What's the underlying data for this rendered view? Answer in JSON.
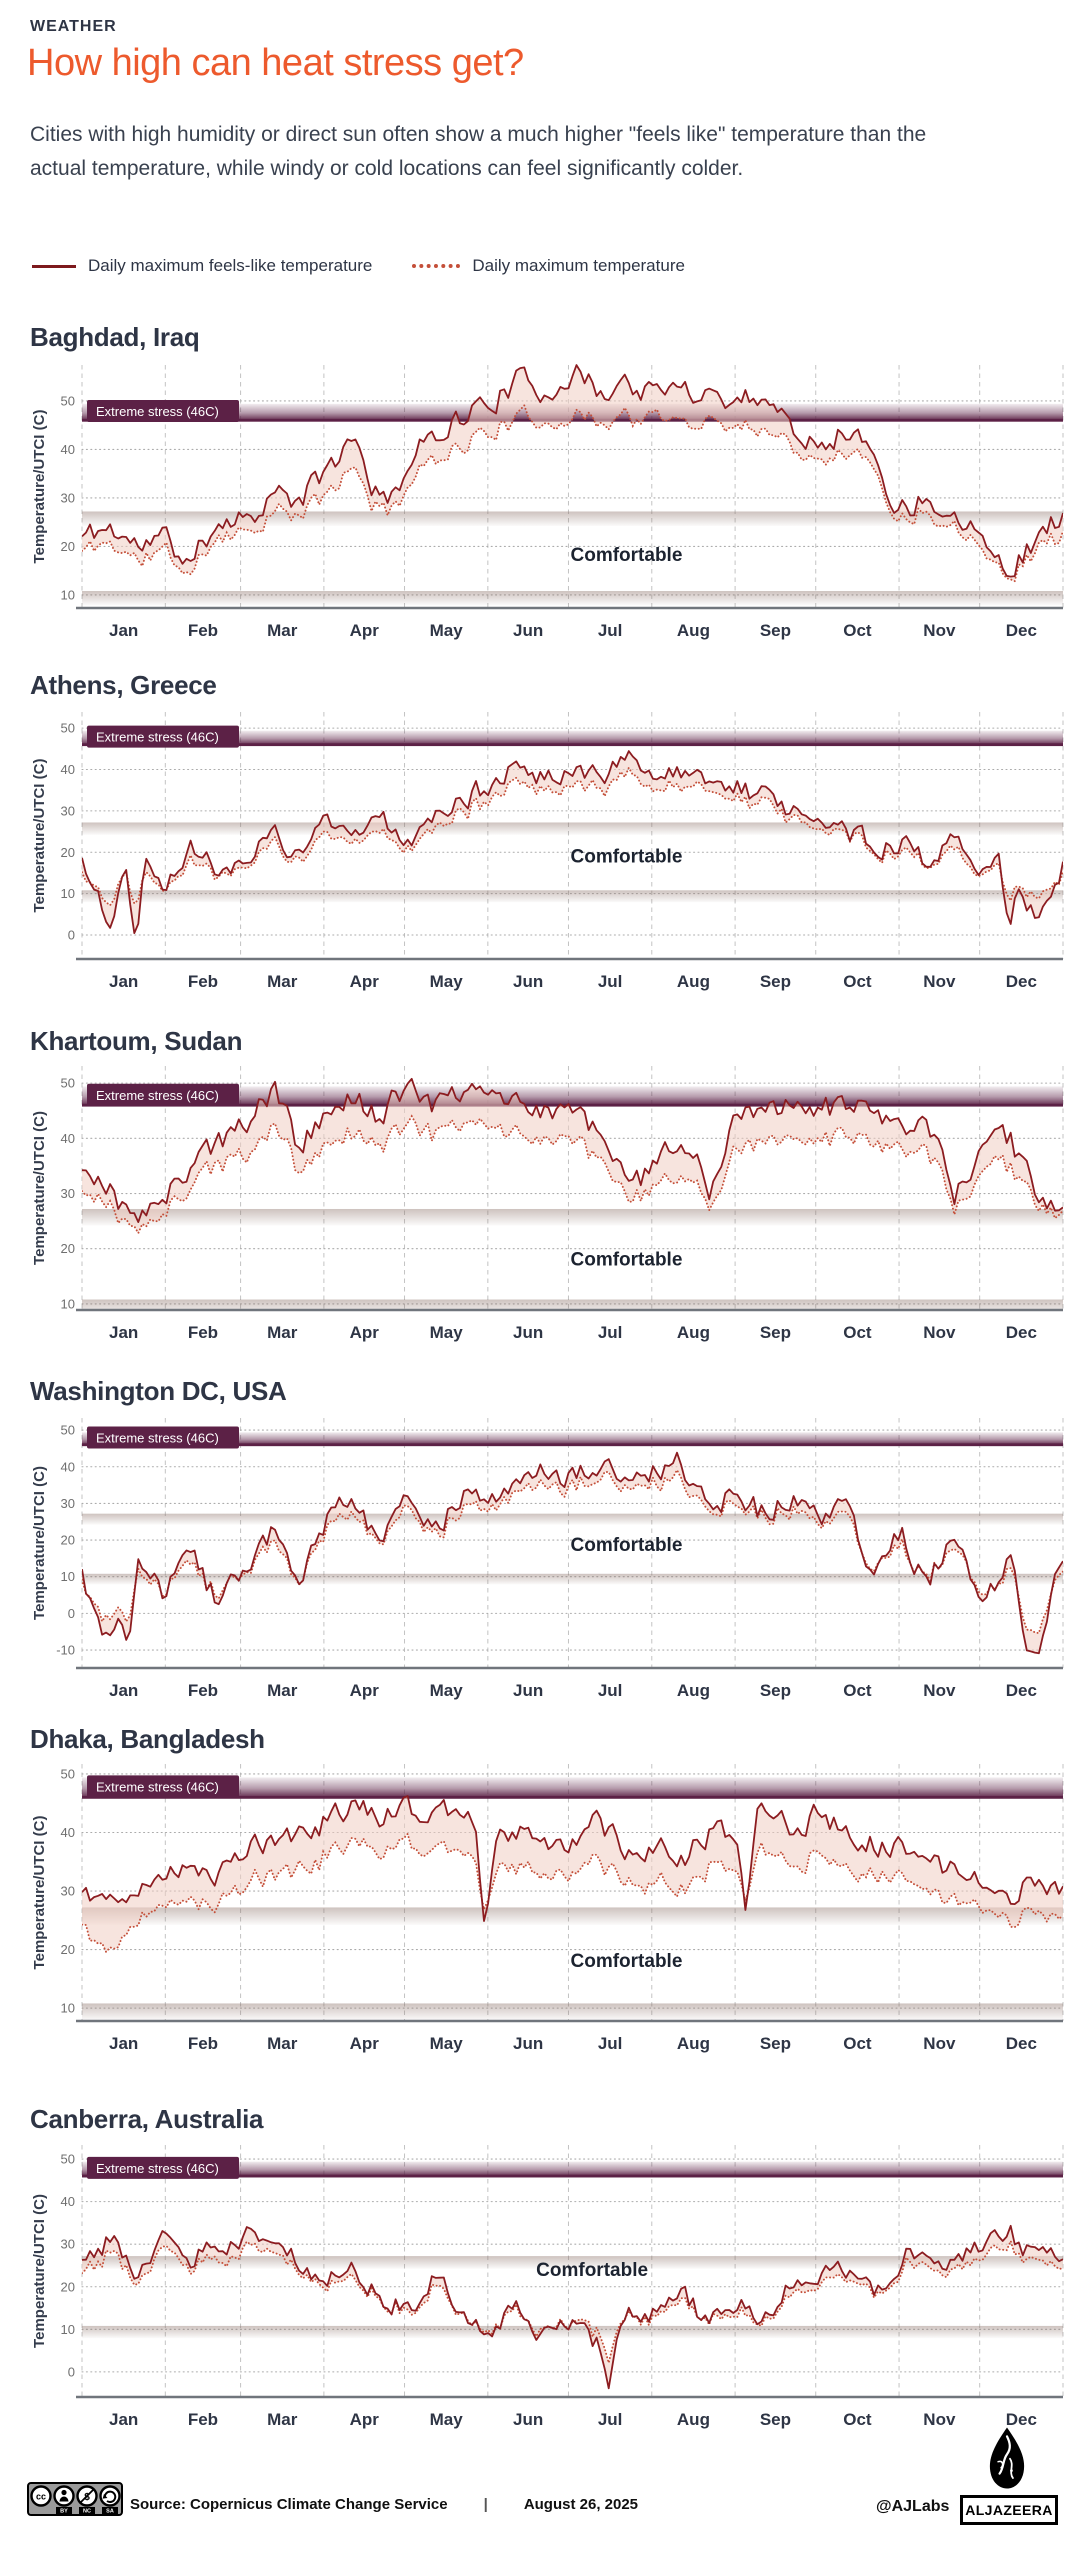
{
  "header": {
    "kicker": "WEATHER",
    "title": "How high can heat stress get?",
    "subtitle": "Cities with high humidity or direct sun often show a much higher \"feels like\" temperature than the actual temperature, while windy or cold locations can feel significantly colder."
  },
  "legend": {
    "feels_like": "Daily maximum feels-like temperature",
    "actual": "Daily maximum temperature"
  },
  "colors": {
    "accent_orange": "#ed5a2d",
    "dark_navy": "#2e3545",
    "solid_line": "#8c1c20",
    "dotted_line": "#c44f39",
    "band_fill": "#5c2146",
    "area_fill": "#f0cdc2",
    "comfort_strip": "#8a6f66"
  },
  "chart_data": [
    {
      "type": "line",
      "city": "Baghdad, Iraq",
      "ylabel": "Temperature/UTCI (C)",
      "x_categories": [
        "Jan",
        "Feb",
        "Mar",
        "Apr",
        "May",
        "Jun",
        "Jul",
        "Aug",
        "Sep",
        "Oct",
        "Nov",
        "Dec"
      ],
      "y_ticks": [
        10,
        20,
        30,
        40,
        50
      ],
      "ylim": [
        7.3,
        57.4
      ],
      "series": [
        {
          "name": "Daily maximum feels-like temperature",
          "values": [
            22,
            24,
            20,
            22,
            16,
            26,
            26,
            31,
            29,
            36,
            42,
            28,
            37,
            44,
            47,
            50,
            54,
            52,
            56,
            52,
            54,
            51,
            53,
            52,
            50,
            52,
            45,
            42,
            44,
            40,
            27,
            31,
            26,
            25,
            14,
            22,
            26
          ]
        },
        {
          "name": "Daily maximum temperature",
          "values": [
            19,
            21,
            17,
            19,
            14,
            23,
            23,
            27,
            26,
            31,
            36,
            26,
            33,
            39,
            41,
            44,
            46,
            46,
            47,
            46,
            47,
            46,
            46,
            46,
            45,
            45,
            41,
            39,
            40,
            37,
            25,
            28,
            24,
            22,
            13,
            20,
            22
          ]
        }
      ],
      "spikes": [],
      "annotations": {
        "extreme_label": "Extreme stress (46C)",
        "extreme_threshold": 46,
        "comfortable_label": "Comfortable",
        "comfortable_pos": {
          "x_frac": 0.555,
          "y": 17
        }
      }
    },
    {
      "type": "line",
      "city": "Athens, Greece",
      "ylabel": "Temperature/UTCI (C)",
      "x_categories": [
        "Jan",
        "Feb",
        "Mar",
        "Apr",
        "May",
        "Jun",
        "Jul",
        "Aug",
        "Sep",
        "Oct",
        "Nov",
        "Dec"
      ],
      "y_ticks": [
        0,
        10,
        20,
        30,
        40,
        50
      ],
      "ylim": [
        -5.8,
        53.9
      ],
      "series": [
        {
          "name": "Daily maximum feels-like temperature",
          "values": [
            18,
            4,
            22,
            14,
            21,
            16,
            20,
            23,
            21,
            26,
            24,
            27,
            24,
            30,
            34,
            35,
            41,
            38,
            42,
            38,
            43,
            39,
            38,
            36,
            36,
            33,
            31,
            31,
            25,
            21,
            23,
            18,
            24,
            17,
            21,
            3,
            18
          ]
        },
        {
          "name": "Daily maximum temperature",
          "values": [
            15,
            9,
            18,
            13,
            18,
            15,
            18,
            21,
            19,
            23,
            22,
            24,
            22,
            27,
            31,
            32,
            37,
            35,
            38,
            35,
            39,
            36,
            35,
            34,
            33,
            31,
            29,
            28,
            24,
            20,
            21,
            17,
            21,
            16,
            18,
            8,
            16
          ]
        }
      ],
      "spikes": [
        {
          "day": 20,
          "feels": -3,
          "actual": 6
        },
        {
          "day": 345,
          "feels": 0,
          "actual": 7
        }
      ],
      "annotations": {
        "extreme_label": "Extreme stress (46C)",
        "extreme_threshold": 46,
        "comfortable_label": "Comfortable",
        "comfortable_pos": {
          "x_frac": 0.555,
          "y": 17.5
        }
      }
    },
    {
      "type": "line",
      "city": "Khartoum, Sudan",
      "ylabel": "Temperature/UTCI (C)",
      "x_categories": [
        "Jan",
        "Feb",
        "Mar",
        "Apr",
        "May",
        "Jun",
        "Jul",
        "Aug",
        "Sep",
        "Oct",
        "Nov",
        "Dec"
      ],
      "y_ticks": [
        10,
        20,
        30,
        40,
        50
      ],
      "ylim": [
        8.9,
        53.1
      ],
      "series": [
        {
          "name": "Daily maximum feels-like temperature",
          "values": [
            34,
            31,
            24,
            29,
            36,
            39,
            43,
            49,
            38,
            45,
            47,
            44,
            50,
            46,
            49,
            48,
            47,
            45,
            46,
            40,
            31,
            34,
            40,
            31,
            44,
            46,
            46,
            46,
            44,
            45,
            41,
            43,
            29,
            37,
            40,
            30,
            28
          ]
        },
        {
          "name": "Daily maximum temperature",
          "values": [
            30,
            28,
            22,
            26,
            32,
            35,
            37,
            42,
            34,
            39,
            41,
            39,
            43,
            41,
            43,
            42,
            41,
            40,
            40,
            36,
            28,
            30,
            34,
            28,
            38,
            40,
            40,
            40,
            39,
            39,
            37,
            38,
            27,
            33,
            35,
            28,
            27
          ]
        }
      ],
      "spikes": [],
      "annotations": {
        "extreme_label": "Extreme stress (46C)",
        "extreme_threshold": 46,
        "comfortable_label": "Comfortable",
        "comfortable_pos": {
          "x_frac": 0.555,
          "y": 17
        }
      }
    },
    {
      "type": "line",
      "city": "Washington DC,  USA",
      "ylabel": "Temperature/UTCI (C)",
      "x_categories": [
        "Jan",
        "Feb",
        "Mar",
        "Apr",
        "May",
        "Jun",
        "Jul",
        "Aug",
        "Sep",
        "Oct",
        "Nov",
        "Dec"
      ],
      "y_ticks": [
        -10,
        0,
        10,
        20,
        30,
        40,
        50
      ],
      "ylim": [
        -14.9,
        53.3
      ],
      "series": [
        {
          "name": "Daily maximum feels-like temperature",
          "values": [
            10,
            -10,
            16,
            6,
            17,
            2,
            13,
            22,
            9,
            26,
            30,
            19,
            33,
            24,
            31,
            29,
            38,
            40,
            37,
            40,
            35,
            38,
            41,
            29,
            33,
            27,
            32,
            26,
            30,
            13,
            23,
            9,
            19,
            3,
            15,
            -11,
            15
          ]
        },
        {
          "name": "Daily maximum temperature",
          "values": [
            8,
            -4,
            13,
            6,
            14,
            4,
            12,
            19,
            9,
            23,
            27,
            18,
            30,
            22,
            28,
            27,
            35,
            36,
            34,
            37,
            33,
            35,
            37,
            27,
            30,
            26,
            29,
            24,
            27,
            13,
            20,
            10,
            17,
            5,
            12,
            -5,
            12
          ]
        }
      ],
      "spikes": [
        {
          "day": 17,
          "feels": -10,
          "actual": -4
        },
        {
          "day": 352,
          "feels": -11,
          "actual": -5
        }
      ],
      "annotations": {
        "extreme_label": "Extreme stress (46C)",
        "extreme_threshold": 46,
        "comfortable_label": "Comfortable",
        "comfortable_pos": {
          "x_frac": 0.555,
          "y": 17
        }
      }
    },
    {
      "type": "line",
      "city": "Dhaka, Bangladesh",
      "ylabel": "Temperature/UTCI (C)",
      "x_categories": [
        "Jan",
        "Feb",
        "Mar",
        "Apr",
        "May",
        "Jun",
        "Jul",
        "Aug",
        "Sep",
        "Oct",
        "Nov",
        "Dec"
      ],
      "y_ticks": [
        10,
        20,
        30,
        40,
        50
      ],
      "ylim": [
        7.8,
        51.7
      ],
      "series": [
        {
          "name": "Daily maximum feels-like temperature",
          "values": [
            30,
            29,
            31,
            32,
            35,
            33,
            37,
            39,
            40,
            42,
            44,
            43,
            44,
            42,
            45,
            41,
            40,
            39,
            38,
            42,
            36,
            38,
            35,
            40,
            40,
            44,
            41,
            43,
            40,
            38,
            37,
            35,
            33,
            31,
            29,
            32,
            31
          ]
        },
        {
          "name": "Daily maximum temperature",
          "values": [
            24,
            20,
            26,
            27,
            29,
            28,
            31,
            33,
            34,
            36,
            38,
            37,
            38,
            36,
            38,
            35,
            34,
            33,
            33,
            35,
            31,
            32,
            30,
            34,
            34,
            37,
            35,
            36,
            34,
            33,
            32,
            30,
            28,
            27,
            25,
            27,
            26
          ]
        }
      ],
      "spikes": [
        {
          "day": 150,
          "feels": 23,
          "actual": 26
        },
        {
          "day": 247,
          "feels": 26,
          "actual": 28
        }
      ],
      "annotations": {
        "extreme_label": "Extreme stress (46C)",
        "extreme_threshold": 46,
        "comfortable_label": "Comfortable",
        "comfortable_pos": {
          "x_frac": 0.555,
          "y": 17
        }
      }
    },
    {
      "type": "line",
      "city": "Canberra, Australia",
      "ylabel": "Temperature/UTCI (C)",
      "x_categories": [
        "Jan",
        "Feb",
        "Mar",
        "Apr",
        "May",
        "Jun",
        "Jul",
        "Aug",
        "Sep",
        "Oct",
        "Nov",
        "Dec"
      ],
      "y_ticks": [
        0,
        10,
        20,
        30,
        40,
        50
      ],
      "ylim": [
        -5.9,
        53.3
      ],
      "series": [
        {
          "name": "Daily maximum feels-like temperature",
          "values": [
            28,
            31,
            24,
            32,
            27,
            30,
            32,
            34,
            24,
            21,
            24,
            18,
            15,
            22,
            13,
            11,
            16,
            8,
            12,
            6,
            16,
            14,
            19,
            11,
            17,
            13,
            21,
            22,
            25,
            19,
            27,
            30,
            24,
            30,
            33,
            26,
            29
          ]
        },
        {
          "name": "Daily maximum temperature",
          "values": [
            25,
            28,
            22,
            29,
            25,
            27,
            29,
            31,
            23,
            20,
            22,
            17,
            14,
            20,
            13,
            11,
            15,
            9,
            12,
            9,
            15,
            13,
            17,
            11,
            15,
            12,
            19,
            20,
            23,
            18,
            25,
            27,
            22,
            27,
            30,
            24,
            26
          ]
        }
      ],
      "spikes": [
        {
          "day": 196,
          "feels": -4,
          "actual": 2
        }
      ],
      "annotations": {
        "extreme_label": "Extreme stress (46C)",
        "extreme_threshold": 46,
        "comfortable_label": "Comfortable",
        "comfortable_pos": {
          "x_frac": 0.52,
          "y": 22.5
        }
      }
    }
  ],
  "footer": {
    "source": "Source:  Copernicus Climate Change Service",
    "divider": "|",
    "date": "August 26, 2025",
    "credit": "@AJLabs",
    "logo_text": "ALJAZEERA",
    "license": "CC BY NC SA",
    "license_parts": [
      "BY",
      "NC",
      "SA"
    ]
  }
}
